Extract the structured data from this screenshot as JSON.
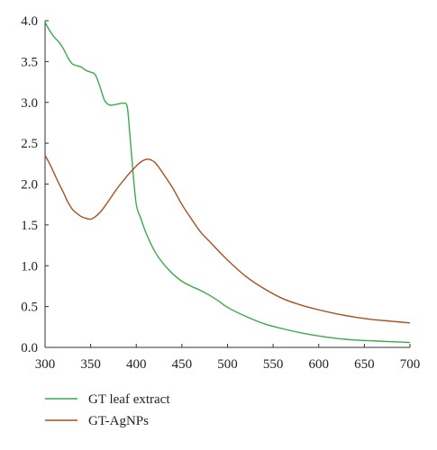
{
  "chart_data": {
    "type": "line",
    "title": "",
    "xlabel": "",
    "ylabel": "",
    "xlim": [
      300,
      700
    ],
    "ylim": [
      0,
      4
    ],
    "xticks": [
      300,
      350,
      400,
      450,
      500,
      550,
      600,
      650,
      700
    ],
    "yticks": [
      0.0,
      0.5,
      1.0,
      1.5,
      2.0,
      2.5,
      3.0,
      3.5,
      4.0
    ],
    "xtick_labels": [
      "300",
      "350",
      "400",
      "450",
      "500",
      "550",
      "600",
      "650",
      "700"
    ],
    "ytick_labels": [
      "0.0",
      "0.5",
      "1.0",
      "1.5",
      "2.0",
      "2.5",
      "3.0",
      "3.5",
      "4.0"
    ],
    "grid": false,
    "legend_position": "bottom-left",
    "series": [
      {
        "name": "GT leaf extract",
        "color": "#3daa4a",
        "x": [
          300,
          305,
          310,
          315,
          320,
          325,
          330,
          335,
          340,
          345,
          350,
          355,
          360,
          365,
          370,
          375,
          380,
          385,
          390,
          393,
          396,
          400,
          405,
          410,
          420,
          430,
          440,
          450,
          460,
          470,
          480,
          490,
          500,
          520,
          540,
          560,
          580,
          600,
          620,
          640,
          660,
          680,
          700
        ],
        "y": [
          3.98,
          3.88,
          3.8,
          3.74,
          3.66,
          3.55,
          3.47,
          3.45,
          3.43,
          3.39,
          3.37,
          3.34,
          3.2,
          3.03,
          2.97,
          2.97,
          2.98,
          2.99,
          2.95,
          2.6,
          2.2,
          1.75,
          1.58,
          1.42,
          1.18,
          1.02,
          0.9,
          0.81,
          0.75,
          0.7,
          0.64,
          0.57,
          0.49,
          0.38,
          0.29,
          0.23,
          0.18,
          0.14,
          0.11,
          0.09,
          0.08,
          0.07,
          0.06
        ]
      },
      {
        "name": "GT-AgNPs",
        "color": "#a8501f",
        "x": [
          300,
          305,
          310,
          315,
          320,
          325,
          330,
          335,
          340,
          345,
          350,
          355,
          360,
          365,
          370,
          380,
          390,
          400,
          405,
          410,
          415,
          420,
          425,
          430,
          440,
          450,
          460,
          470,
          480,
          500,
          520,
          540,
          560,
          580,
          600,
          620,
          640,
          660,
          680,
          700
        ],
        "y": [
          2.35,
          2.25,
          2.13,
          2.01,
          1.9,
          1.78,
          1.69,
          1.64,
          1.6,
          1.58,
          1.57,
          1.6,
          1.65,
          1.72,
          1.8,
          1.96,
          2.1,
          2.22,
          2.27,
          2.3,
          2.3,
          2.27,
          2.2,
          2.12,
          1.95,
          1.75,
          1.58,
          1.42,
          1.3,
          1.07,
          0.87,
          0.72,
          0.6,
          0.52,
          0.46,
          0.41,
          0.37,
          0.34,
          0.32,
          0.3
        ]
      }
    ]
  }
}
